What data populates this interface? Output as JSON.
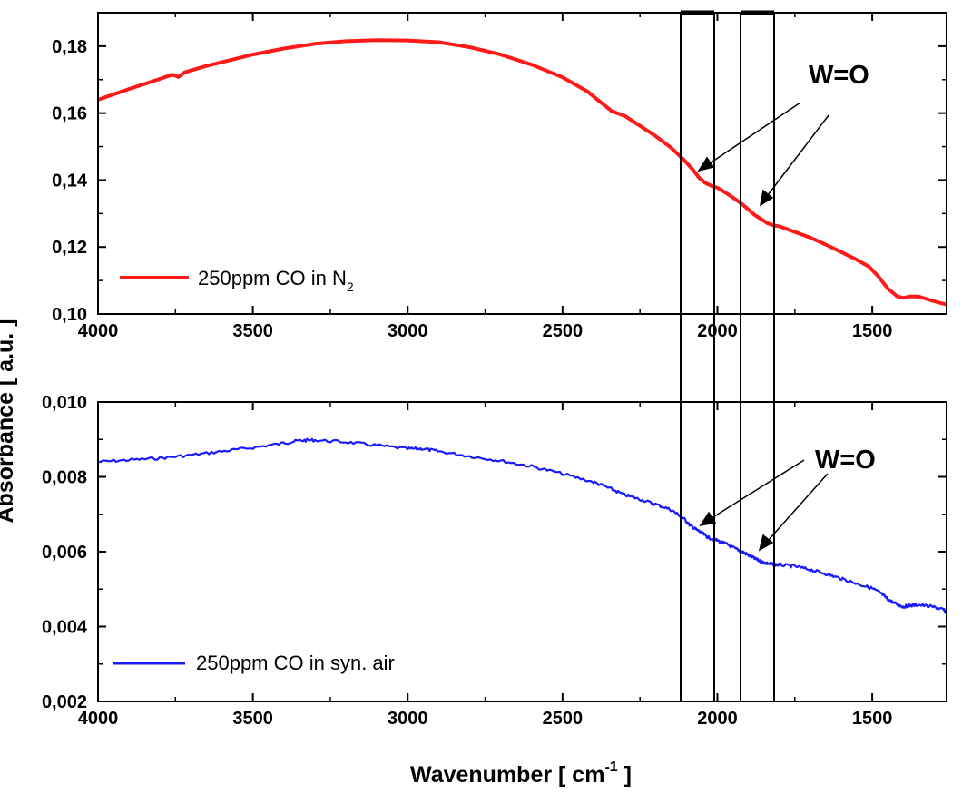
{
  "chart_data": [
    {
      "type": "line",
      "panel": "top",
      "xlabel": "",
      "ylabel": "",
      "xlim": [
        4000,
        1260
      ],
      "ylim": [
        0.1,
        0.19
      ],
      "x_ticks": [
        "4000",
        "3500",
        "3000",
        "2500",
        "2000",
        "1500"
      ],
      "y_ticks": [
        "0,10",
        "0,12",
        "0,14",
        "0,16",
        "0,18"
      ],
      "x_tick_values": [
        4000,
        3500,
        3000,
        2500,
        2000,
        1500
      ],
      "y_tick_values": [
        0.1,
        0.12,
        0.14,
        0.16,
        0.18
      ],
      "legend": {
        "prefix": "250ppm CO in N",
        "subscript": "2",
        "position": "bottom-left"
      },
      "annotation": "W=O",
      "series": [
        {
          "name": "250ppm CO in N2",
          "color": "#ff1a1a",
          "x": [
            4000,
            3900,
            3800,
            3760,
            3740,
            3720,
            3650,
            3500,
            3400,
            3300,
            3200,
            3100,
            3000,
            2900,
            2800,
            2700,
            2600,
            2500,
            2420,
            2380,
            2340,
            2300,
            2250,
            2200,
            2150,
            2110,
            2080,
            2060,
            2040,
            2020,
            2000,
            1980,
            1950,
            1920,
            1900,
            1880,
            1860,
            1840,
            1820,
            1800,
            1750,
            1700,
            1650,
            1600,
            1550,
            1510,
            1480,
            1450,
            1420,
            1400,
            1380,
            1350,
            1300,
            1260
          ],
          "y": [
            0.164,
            0.1672,
            0.1702,
            0.1715,
            0.1708,
            0.1722,
            0.1741,
            0.1775,
            0.1793,
            0.1807,
            0.1815,
            0.1818,
            0.1817,
            0.1812,
            0.1797,
            0.1775,
            0.1745,
            0.1707,
            0.1665,
            0.1635,
            0.1605,
            0.1592,
            0.1562,
            0.1532,
            0.1497,
            0.1462,
            0.1432,
            0.1408,
            0.1392,
            0.1383,
            0.1377,
            0.1366,
            0.1348,
            0.1328,
            0.1312,
            0.1296,
            0.1284,
            0.1272,
            0.1265,
            0.1262,
            0.1245,
            0.1228,
            0.1207,
            0.1185,
            0.1162,
            0.1141,
            0.1112,
            0.1076,
            0.1053,
            0.1048,
            0.1052,
            0.1052,
            0.1038,
            0.1028
          ]
        }
      ]
    },
    {
      "type": "line",
      "panel": "bottom",
      "xlabel": "Wavenumber [ cm",
      "xlabel_superscript": "-1",
      "xlabel_suffix": " ]",
      "ylabel": "Absorbance [ a.u. ]",
      "xlim": [
        4000,
        1260
      ],
      "ylim": [
        0.002,
        0.01
      ],
      "x_ticks": [
        "4000",
        "3500",
        "3000",
        "2500",
        "2000",
        "1500"
      ],
      "y_ticks": [
        "0,002",
        "0,004",
        "0,006",
        "0,008",
        "0,010"
      ],
      "x_tick_values": [
        4000,
        3500,
        3000,
        2500,
        2000,
        1500
      ],
      "y_tick_values": [
        0.002,
        0.004,
        0.006,
        0.008,
        0.01
      ],
      "legend": {
        "prefix": "250ppm CO in syn. air",
        "subscript": "",
        "position": "bottom-left"
      },
      "annotation": "W=O",
      "series": [
        {
          "name": "250ppm CO in syn. air",
          "color": "#1a1aff",
          "x": [
            4000,
            3900,
            3800,
            3700,
            3600,
            3500,
            3400,
            3350,
            3300,
            3200,
            3100,
            3000,
            2950,
            2900,
            2800,
            2700,
            2600,
            2500,
            2400,
            2350,
            2300,
            2250,
            2200,
            2150,
            2110,
            2090,
            2070,
            2050,
            2030,
            2000,
            1970,
            1940,
            1920,
            1900,
            1880,
            1860,
            1840,
            1820,
            1800,
            1750,
            1700,
            1650,
            1600,
            1550,
            1500,
            1470,
            1450,
            1420,
            1400,
            1380,
            1350,
            1300,
            1270,
            1260
          ],
          "y": [
            0.0084,
            0.00845,
            0.0085,
            0.00858,
            0.00868,
            0.00878,
            0.0089,
            0.00897,
            0.00898,
            0.00893,
            0.00884,
            0.00875,
            0.00875,
            0.00868,
            0.00855,
            0.00843,
            0.00828,
            0.00808,
            0.00786,
            0.0077,
            0.00752,
            0.0074,
            0.00727,
            0.00712,
            0.0069,
            0.00672,
            0.0066,
            0.0065,
            0.00638,
            0.0063,
            0.0062,
            0.00607,
            0.006,
            0.00591,
            0.00582,
            0.00574,
            0.00569,
            0.00566,
            0.00565,
            0.00561,
            0.00552,
            0.00541,
            0.00528,
            0.00515,
            0.00502,
            0.00488,
            0.00473,
            0.00459,
            0.00453,
            0.00456,
            0.00458,
            0.00452,
            0.00445,
            0.00438
          ]
        }
      ]
    }
  ]
}
